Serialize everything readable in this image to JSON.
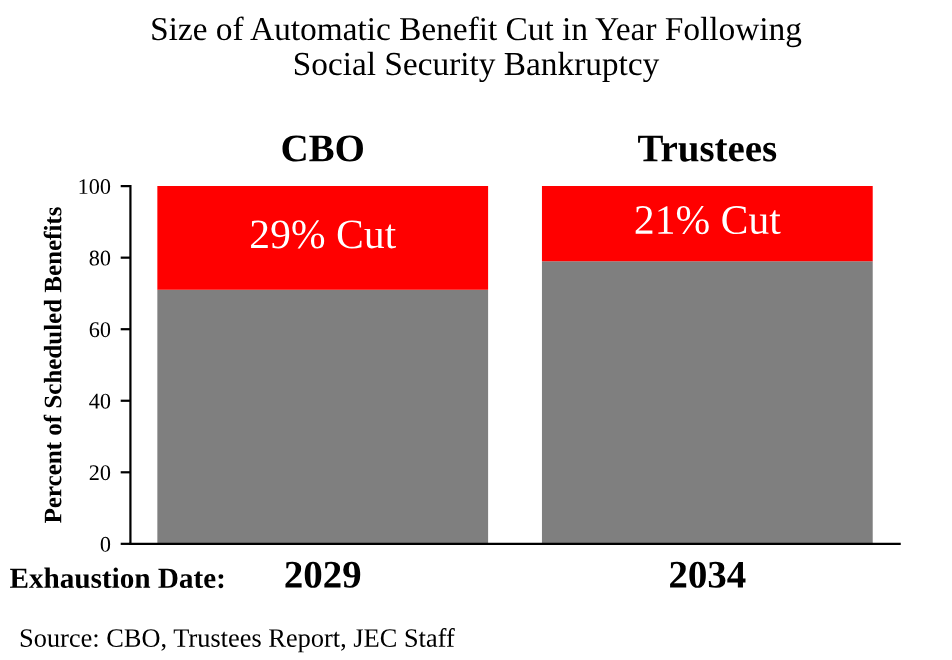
{
  "chart_data": {
    "type": "bar",
    "stacked": true,
    "title": "Size of Automatic Benefit Cut in Year Following\nSocial Security Bankruptcy",
    "ylabel": "Percent of Scheduled Benefits",
    "categories": [
      "2029",
      "2034"
    ],
    "series": [
      {
        "color": "#7f7f7f",
        "values": [
          71,
          79
        ]
      },
      {
        "color": "#ff0000",
        "values": [
          29,
          21
        ],
        "value_labels": [
          "29% Cut",
          "21% Cut"
        ]
      }
    ],
    "ylim": [
      0,
      100
    ],
    "yticks": [
      0,
      20,
      40,
      60,
      80,
      100
    ],
    "grid": false,
    "legend": false,
    "annotations": [
      {
        "text": "CBO",
        "x": "2029",
        "y": 100
      },
      {
        "text": "Trustees",
        "x": "2034",
        "y": 100
      },
      "Exhaustion Date:",
      "Source: CBO, Trustees Report, JEC Staff"
    ]
  }
}
